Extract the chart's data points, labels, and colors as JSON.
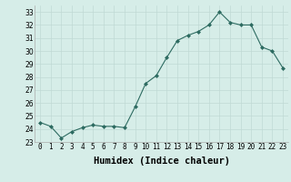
{
  "x": [
    0,
    1,
    2,
    3,
    4,
    5,
    6,
    7,
    8,
    9,
    10,
    11,
    12,
    13,
    14,
    15,
    16,
    17,
    18,
    19,
    20,
    21,
    22,
    23
  ],
  "y": [
    24.5,
    24.2,
    23.3,
    23.8,
    24.1,
    24.3,
    24.2,
    24.2,
    24.1,
    25.7,
    27.5,
    28.1,
    29.5,
    30.8,
    31.2,
    31.5,
    32.0,
    33.0,
    32.2,
    32.0,
    32.0,
    30.3,
    30.0,
    28.7
  ],
  "xlabel": "Humidex (Indice chaleur)",
  "xlim": [
    -0.5,
    23.5
  ],
  "ylim": [
    23,
    33.5
  ],
  "yticks": [
    23,
    24,
    25,
    26,
    27,
    28,
    29,
    30,
    31,
    32,
    33
  ],
  "xticks": [
    0,
    1,
    2,
    3,
    4,
    5,
    6,
    7,
    8,
    9,
    10,
    11,
    12,
    13,
    14,
    15,
    16,
    17,
    18,
    19,
    20,
    21,
    22,
    23
  ],
  "line_color": "#2d6b61",
  "marker_color": "#2d6b61",
  "bg_color": "#d6ede8",
  "grid_color": "#c0d9d4",
  "tick_fontsize": 5.5,
  "xlabel_fontsize": 7.5
}
